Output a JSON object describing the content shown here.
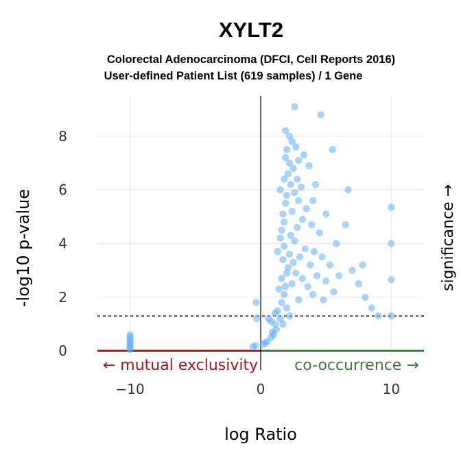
{
  "chart_data": {
    "type": "scatter",
    "title": "XYLT2",
    "subtitle_lines": [
      "Colorectal Adenocarcinoma (DFCI, Cell Reports 2016)",
      "User-defined Patient List (619 samples) / 1 Gene"
    ],
    "xlabel": "log Ratio",
    "ylabel": "-log10 p-value",
    "right_label": "significance →",
    "xlim": [
      -12.5,
      12.5
    ],
    "ylim": [
      -0.2,
      9.5
    ],
    "x_ticks": [
      {
        "value": -10,
        "label": "−10"
      },
      {
        "value": 0,
        "label": "0"
      },
      {
        "value": 10,
        "label": "10"
      }
    ],
    "y_ticks": [
      {
        "value": 0,
        "label": "0"
      },
      {
        "value": 2,
        "label": "2"
      },
      {
        "value": 4,
        "label": "4"
      },
      {
        "value": 6,
        "label": "6"
      },
      {
        "value": 8,
        "label": "8"
      }
    ],
    "grid": true,
    "significance_threshold": 1.3,
    "mutual_exclusivity_label": "← mutual exclusivity",
    "co_occurrence_label": "co-occurrence →",
    "colors": {
      "points": "#63aff7",
      "mutual_exclusivity": "#a8161c",
      "co_occurrence": "#3e7a3e",
      "threshold": "#000000",
      "grid": "#ececec"
    },
    "points": [
      [
        -10,
        0.05
      ],
      [
        -10,
        0.12
      ],
      [
        -10,
        0.2
      ],
      [
        -10,
        0.28
      ],
      [
        -10,
        0.36
      ],
      [
        -10,
        0.44
      ],
      [
        -10,
        0.52
      ],
      [
        -10,
        0.6
      ],
      [
        -0.4,
        0.2
      ],
      [
        -0.6,
        0.15
      ],
      [
        -0.3,
        1.2
      ],
      [
        -0.35,
        1.8
      ],
      [
        0.2,
        0.25
      ],
      [
        0.35,
        0.3
      ],
      [
        0.5,
        0.35
      ],
      [
        0.6,
        1.2
      ],
      [
        0.8,
        0.5
      ],
      [
        0.8,
        1.1
      ],
      [
        0.9,
        0.7
      ],
      [
        1.0,
        0.6
      ],
      [
        1.1,
        1.0
      ],
      [
        1.1,
        1.4
      ],
      [
        1.2,
        0.8
      ],
      [
        1.3,
        1.5
      ],
      [
        1.3,
        3.7
      ],
      [
        1.4,
        2.3
      ],
      [
        1.5,
        1.2
      ],
      [
        1.5,
        4.2
      ],
      [
        1.5,
        6.0
      ],
      [
        1.6,
        1.8
      ],
      [
        1.6,
        2.7
      ],
      [
        1.6,
        4.5
      ],
      [
        1.7,
        1.0
      ],
      [
        1.7,
        3.4
      ],
      [
        1.7,
        5.1
      ],
      [
        1.8,
        2.1
      ],
      [
        1.8,
        3.9
      ],
      [
        1.8,
        4.8
      ],
      [
        1.8,
        6.4
      ],
      [
        1.9,
        2.4
      ],
      [
        1.9,
        5.5
      ],
      [
        1.9,
        7.2
      ],
      [
        1.9,
        8.2
      ],
      [
        2.0,
        1.6
      ],
      [
        2.0,
        2.9
      ],
      [
        2.0,
        5.8
      ],
      [
        2.0,
        7.5
      ],
      [
        2.1,
        3.1
      ],
      [
        2.1,
        6.6
      ],
      [
        2.2,
        1.3
      ],
      [
        2.2,
        3.6
      ],
      [
        2.2,
        7.0
      ],
      [
        2.2,
        8.0
      ],
      [
        2.3,
        4.3
      ],
      [
        2.3,
        6.2
      ],
      [
        2.4,
        2.5
      ],
      [
        2.4,
        5.2
      ],
      [
        2.4,
        7.8
      ],
      [
        2.5,
        3.3
      ],
      [
        2.5,
        6.8
      ],
      [
        2.6,
        4.1
      ],
      [
        2.6,
        5.9
      ],
      [
        2.6,
        9.1
      ],
      [
        2.7,
        2.9
      ],
      [
        2.7,
        7.6
      ],
      [
        2.8,
        4.6
      ],
      [
        2.8,
        6.4
      ],
      [
        2.9,
        1.9
      ],
      [
        2.9,
        5.6
      ],
      [
        2.9,
        7.1
      ],
      [
        3.0,
        3.5
      ],
      [
        3.1,
        6.1
      ],
      [
        3.2,
        2.7
      ],
      [
        3.2,
        4.9
      ],
      [
        3.3,
        7.3
      ],
      [
        3.4,
        3.8
      ],
      [
        3.5,
        5.3
      ],
      [
        3.6,
        2.4
      ],
      [
        3.7,
        6.9
      ],
      [
        3.8,
        3.2
      ],
      [
        3.9,
        4.7
      ],
      [
        4.0,
        5.6
      ],
      [
        4.0,
        2.1
      ],
      [
        4.1,
        3.7
      ],
      [
        4.2,
        6.2
      ],
      [
        4.3,
        2.8
      ],
      [
        4.5,
        4.4
      ],
      [
        4.6,
        8.8
      ],
      [
        4.7,
        3.5
      ],
      [
        4.8,
        1.9
      ],
      [
        5.0,
        2.6
      ],
      [
        5.0,
        5.1
      ],
      [
        5.3,
        3.2
      ],
      [
        5.5,
        7.5
      ],
      [
        5.6,
        2.2
      ],
      [
        5.8,
        4.0
      ],
      [
        6.0,
        2.8
      ],
      [
        6.5,
        4.7
      ],
      [
        6.7,
        6.0
      ],
      [
        7.0,
        3.0
      ],
      [
        7.5,
        2.5
      ],
      [
        7.8,
        3.2
      ],
      [
        8.0,
        2.0
      ],
      [
        8.5,
        1.6
      ],
      [
        9.0,
        1.3
      ],
      [
        10,
        1.3
      ],
      [
        10,
        2.65
      ],
      [
        10,
        4.0
      ],
      [
        10,
        5.35
      ]
    ]
  }
}
